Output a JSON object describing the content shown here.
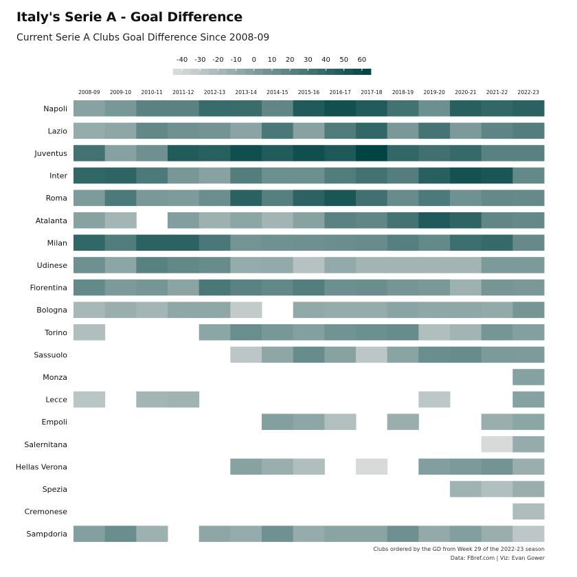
{
  "title": "Italy's Serie A - Goal Difference",
  "subtitle": "Current Serie A Clubs Goal Difference Since 2008-09",
  "caption_note": "Clubs ordered by the GD from Week 29 of the 2022-23 season",
  "caption_credit": "Data: FBref.com | Viz: Evan Gower",
  "chart_data": {
    "type": "heatmap",
    "legend": {
      "ticks": [
        -40,
        -30,
        -20,
        -10,
        0,
        10,
        20,
        30,
        40,
        50,
        60
      ],
      "min": -45,
      "max": 65,
      "placement": "top"
    },
    "colors": {
      "low": "#dcdcdc",
      "high": "#004444"
    },
    "seasons": [
      "2008-09",
      "2009-10",
      "2010-11",
      "2011-12",
      "2012-13",
      "2013-14",
      "2014-15",
      "2015-16",
      "2016-17",
      "2017-18",
      "2018-19",
      "2019-20",
      "2020-21",
      "2021-22",
      "2022-23"
    ],
    "clubs": [
      "Napoli",
      "Lazio",
      "Juventus",
      "Inter",
      "Roma",
      "Atalanta",
      "Milan",
      "Udinese",
      "Fiorentina",
      "Bologna",
      "Torino",
      "Sassuolo",
      "Monza",
      "Lecce",
      "Empoli",
      "Salernitana",
      "Hellas Verona",
      "Spezia",
      "Cremonese",
      "Sampdoria"
    ],
    "values": [
      [
        -3,
        5,
        20,
        20,
        37,
        36,
        17,
        49,
        56,
        48,
        32,
        11,
        45,
        40,
        44
      ],
      [
        -10,
        -6,
        16,
        9,
        7,
        -4,
        28,
        -3,
        25,
        40,
        4,
        30,
        3,
        18,
        23
      ],
      [
        32,
        -2,
        10,
        48,
        45,
        57,
        48,
        57,
        50,
        65,
        40,
        33,
        38,
        21,
        21
      ],
      [
        40,
        42,
        27,
        5,
        -3,
        23,
        11,
        11,
        24,
        32,
        23,
        45,
        55,
        52,
        15
      ],
      [
        2,
        27,
        4,
        2,
        12,
        44,
        22,
        43,
        52,
        33,
        13,
        27,
        9,
        15,
        14
      ],
      [
        -3,
        -17,
        null,
        0,
        -14,
        -5,
        -16,
        -3,
        20,
        17,
        31,
        49,
        42,
        17,
        15
      ],
      [
        40,
        24,
        43,
        43,
        28,
        7,
        9,
        10,
        12,
        13,
        22,
        15,
        34,
        38,
        14
      ],
      [
        10,
        -5,
        21,
        16,
        13,
        -10,
        -9,
        -26,
        -9,
        -16,
        -16,
        -16,
        -16,
        3,
        3
      ],
      [
        15,
        3,
        6,
        -4,
        28,
        20,
        16,
        23,
        11,
        12,
        6,
        4,
        -14,
        6,
        4
      ],
      [
        -19,
        -12,
        -17,
        -7,
        -7,
        -32,
        null,
        -8,
        -10,
        -10,
        -4,
        -7,
        -7,
        -9,
        6
      ],
      [
        -23,
        null,
        null,
        null,
        -5,
        12,
        5,
        -1,
        8,
        11,
        13,
        -23,
        -16,
        6,
        -1
      ],
      [
        null,
        null,
        null,
        null,
        null,
        -29,
        -6,
        13,
        -3,
        -29,
        -4,
        12,
        13,
        3,
        2
      ],
      [
        null,
        null,
        null,
        null,
        null,
        null,
        null,
        null,
        null,
        null,
        null,
        null,
        null,
        null,
        -2
      ],
      [
        -28,
        null,
        -17,
        -15,
        null,
        null,
        null,
        null,
        null,
        null,
        null,
        -30,
        null,
        null,
        -2
      ],
      [
        null,
        null,
        null,
        null,
        null,
        null,
        -1,
        -6,
        -24,
        null,
        -12,
        null,
        null,
        -12,
        -5
      ],
      [
        null,
        null,
        null,
        null,
        null,
        null,
        null,
        null,
        null,
        null,
        null,
        null,
        null,
        -43,
        -10
      ],
      [
        null,
        null,
        null,
        null,
        null,
        -3,
        -12,
        -23,
        null,
        -43,
        null,
        0,
        3,
        7,
        -12
      ],
      [
        null,
        null,
        null,
        null,
        null,
        null,
        null,
        null,
        null,
        null,
        null,
        null,
        -15,
        -24,
        -12
      ],
      [
        null,
        null,
        null,
        null,
        null,
        null,
        null,
        null,
        null,
        null,
        null,
        null,
        null,
        null,
        -22
      ],
      [
        -1,
        12,
        -14,
        null,
        -6,
        -10,
        9,
        -10,
        -4,
        -4,
        10,
        -9,
        0,
        -12,
        -30
      ]
    ]
  }
}
